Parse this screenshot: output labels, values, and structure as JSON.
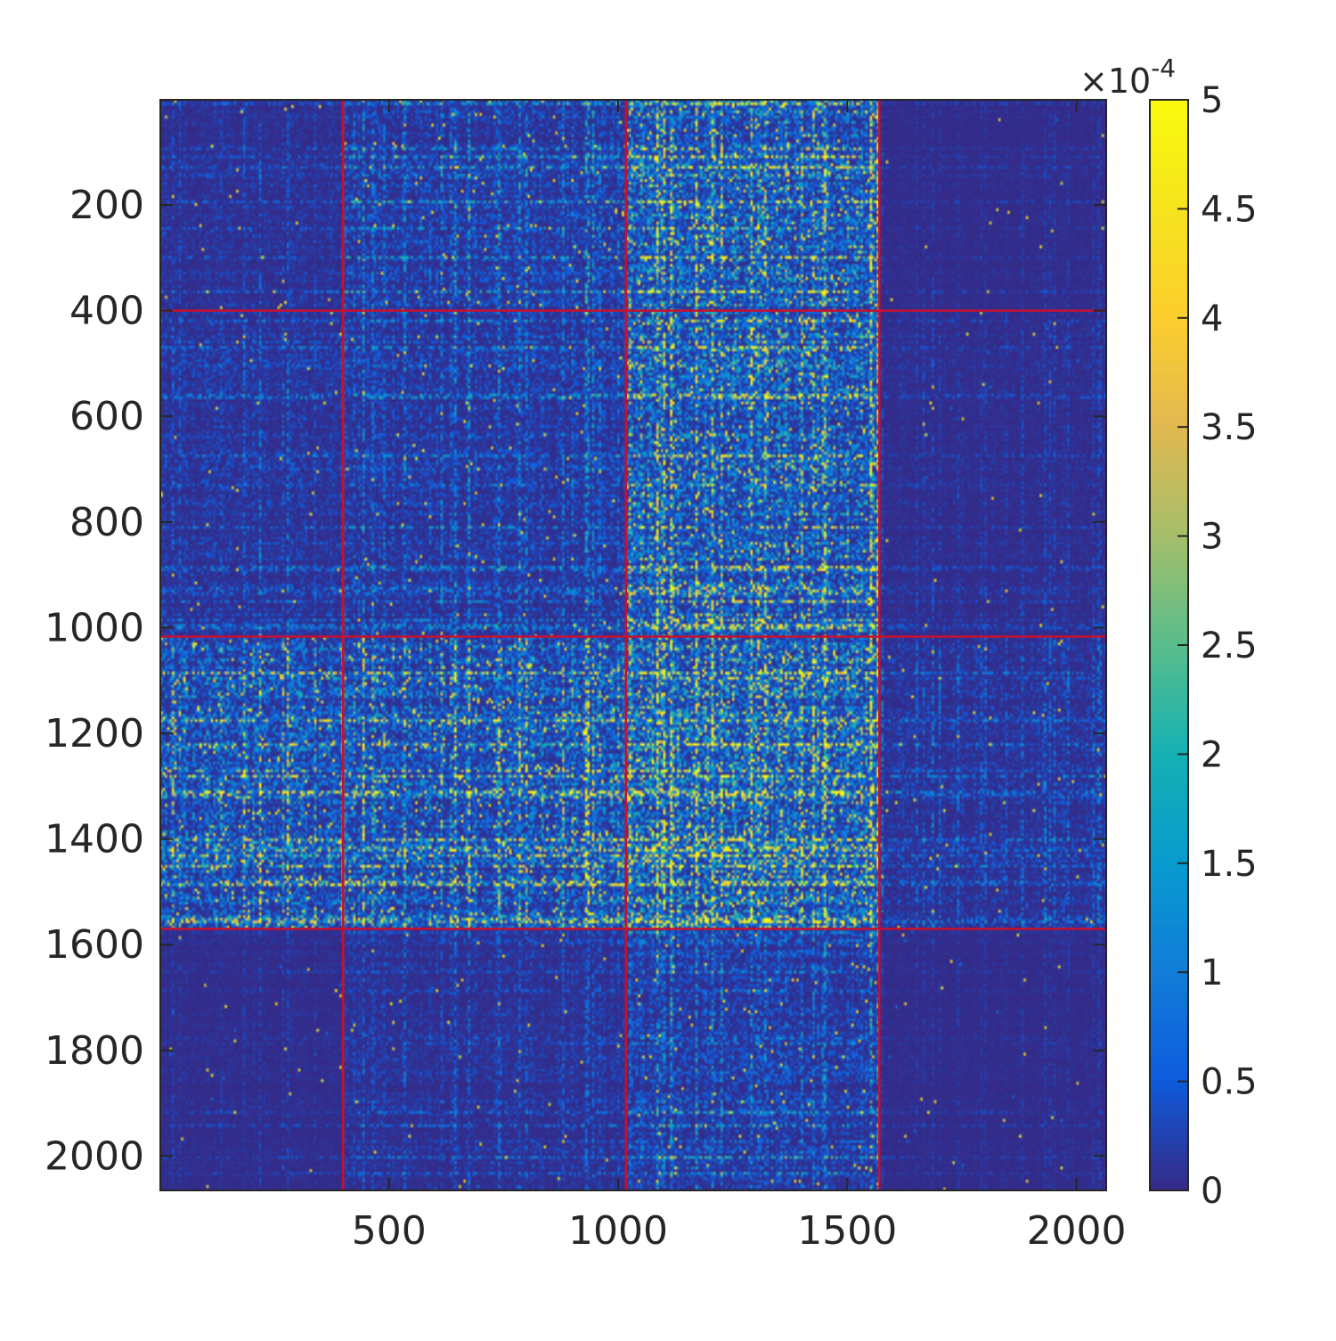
{
  "chart_data": {
    "type": "heatmap",
    "title": "",
    "xlabel": "",
    "ylabel": "",
    "xlim": [
      1,
      2065
    ],
    "ylim": [
      1,
      2065
    ],
    "y_axis_direction": "reversed",
    "x_ticks": [
      500,
      1000,
      1500,
      2000
    ],
    "y_ticks": [
      200,
      400,
      600,
      800,
      1000,
      1200,
      1400,
      1600,
      1800,
      2000
    ],
    "x_tick_labels": [
      "500",
      "1000",
      "1500",
      "2000"
    ],
    "y_tick_labels": [
      "200",
      "400",
      "600",
      "800",
      "1000",
      "1200",
      "1400",
      "1600",
      "1800",
      "2000"
    ],
    "colormap": "parula",
    "colorbar": {
      "range": [
        0,
        0.0005
      ],
      "ticks": [
        0,
        0.5,
        1,
        1.5,
        2,
        2.5,
        3,
        3.5,
        4,
        4.5,
        5
      ],
      "tick_labels": [
        "0",
        "0.5",
        "1",
        "1.5",
        "2",
        "2.5",
        "3",
        "3.5",
        "4",
        "4.5",
        "5"
      ],
      "multiplier": "-4",
      "multiplier_label": "×10",
      "position": "right"
    },
    "block_boundaries": [
      400,
      1017,
      1570
    ],
    "block_boundary_color": "#c8102e",
    "block_intensity": [
      [
        0.08,
        0.22,
        0.55,
        0.03
      ],
      [
        0.12,
        0.18,
        0.55,
        0.05
      ],
      [
        0.45,
        0.5,
        0.75,
        0.12
      ],
      [
        0.04,
        0.1,
        0.22,
        0.03
      ]
    ],
    "grid": false,
    "colors": {
      "background": "#352a87",
      "low": "#3e26a8",
      "high": "#f9fb0e"
    }
  }
}
